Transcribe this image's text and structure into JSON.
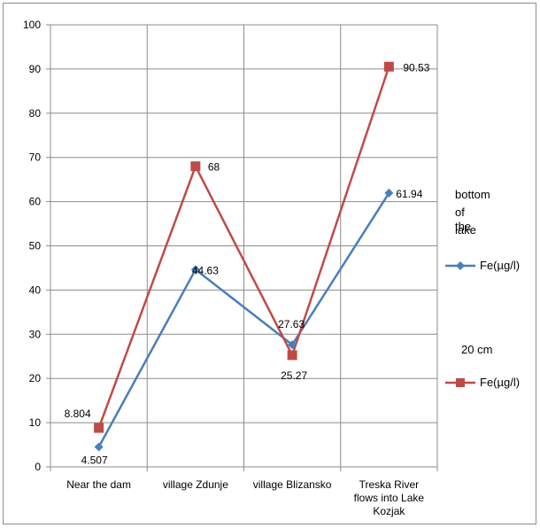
{
  "chart_data": {
    "type": "line",
    "title": "",
    "xlabel": "",
    "ylabel": "",
    "ylim": [
      0,
      100
    ],
    "ytick_step": 10,
    "grid": "vertical and horizontal major",
    "legend_position": "right",
    "categories": [
      "Near the dam",
      "village Zdunje",
      "village Blizansko",
      "Treska River flows into Lake Kozjak"
    ],
    "category_lines": [
      [
        "Near the dam"
      ],
      [
        "village Zdunje"
      ],
      [
        "village Blizansko"
      ],
      [
        "Treska River",
        "flows into Lake",
        "Kozjak"
      ]
    ],
    "series": [
      {
        "name": "Fe(µg/l)",
        "group": "bottom of the lake",
        "color": "#4a7ebb",
        "marker": "diamond",
        "values": [
          4.507,
          44.63,
          27.63,
          61.94
        ],
        "labels": [
          "4.507",
          "44.63",
          "27.63",
          "61.94"
        ]
      },
      {
        "name": "Fe(µg/l)",
        "group": "20 cm",
        "color": "#be4b48",
        "marker": "square",
        "values": [
          8.804,
          68,
          25.27,
          90.53
        ],
        "labels": [
          "8.804",
          "68",
          "25.27",
          "90.53"
        ]
      }
    ]
  },
  "legend": {
    "group1_title_lines": [
      "bottom",
      "of the",
      "lake"
    ],
    "group1_entry": "Fe(µg/l)",
    "group2_title": "20 cm",
    "group2_entry": "Fe(µg/l)"
  }
}
